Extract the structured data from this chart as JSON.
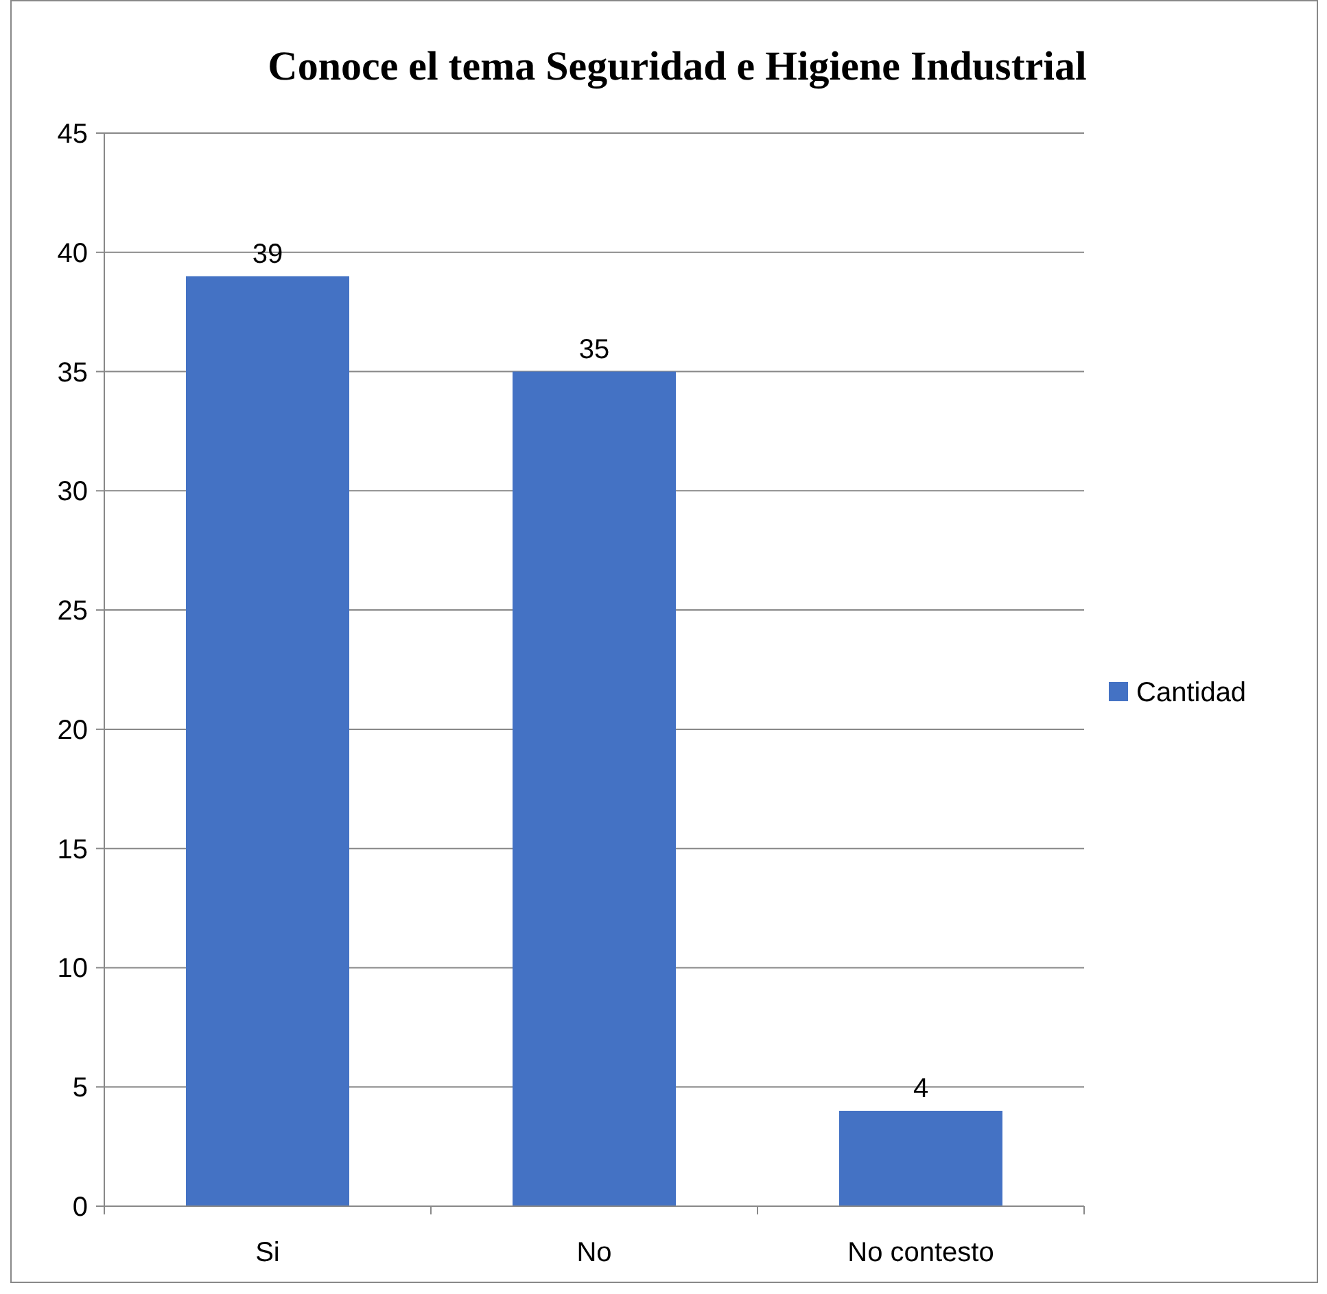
{
  "chart_data": {
    "type": "bar",
    "title": "Conoce el tema Seguridad e Higiene Industrial",
    "categories": [
      "Si",
      "No",
      "No contesto"
    ],
    "series": [
      {
        "name": "Cantidad",
        "color": "#4472c4",
        "values": [
          39,
          35,
          4
        ]
      }
    ],
    "ylim": [
      0,
      45
    ],
    "yticks": [
      0,
      5,
      10,
      15,
      20,
      25,
      30,
      35,
      40,
      45
    ],
    "grid": "y",
    "legend": "right",
    "data_labels": true
  }
}
